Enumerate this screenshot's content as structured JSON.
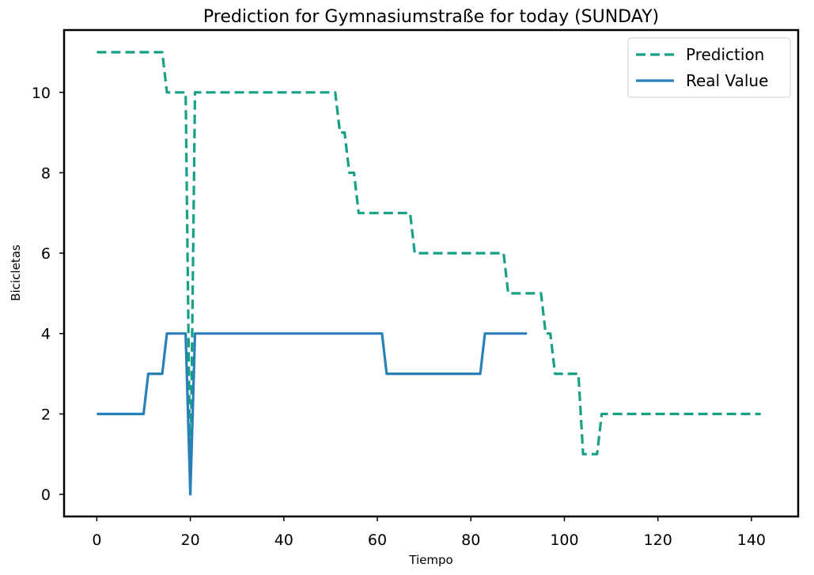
{
  "chart_data": {
    "type": "line",
    "title": "Prediction for Gymnasiumstraße for today (SUNDAY)",
    "xlabel": "Tiempo",
    "ylabel": "Bicicletas",
    "xlim": [
      -7,
      150
    ],
    "ylim": [
      -0.55,
      11.55
    ],
    "xticks": [
      "0",
      "20",
      "40",
      "60",
      "80",
      "100",
      "120",
      "140"
    ],
    "yticks": [
      "0",
      "2",
      "4",
      "6",
      "8",
      "10"
    ],
    "grid": false,
    "legend_position": "top-right",
    "series": [
      {
        "name": "Prediction",
        "style": "dashed",
        "color": "#16a085",
        "points": [
          [
            0,
            11
          ],
          [
            14,
            11
          ],
          [
            15,
            10
          ],
          [
            19,
            10
          ],
          [
            20,
            0
          ],
          [
            21,
            10
          ],
          [
            51,
            10
          ],
          [
            52,
            9
          ],
          [
            53,
            9
          ],
          [
            54,
            8
          ],
          [
            55,
            8
          ],
          [
            56,
            7
          ],
          [
            67,
            7
          ],
          [
            68,
            6
          ],
          [
            87,
            6
          ],
          [
            88,
            5
          ],
          [
            95,
            5
          ],
          [
            96,
            4
          ],
          [
            97,
            4
          ],
          [
            98,
            3
          ],
          [
            103,
            3
          ],
          [
            104,
            1
          ],
          [
            107,
            1
          ],
          [
            108,
            2
          ],
          [
            142,
            2
          ]
        ]
      },
      {
        "name": "Real Value",
        "style": "solid",
        "color": "#2980b9",
        "points": [
          [
            0,
            2
          ],
          [
            10,
            2
          ],
          [
            11,
            3
          ],
          [
            14,
            3
          ],
          [
            15,
            4
          ],
          [
            19,
            4
          ],
          [
            20,
            0
          ],
          [
            21,
            4
          ],
          [
            61,
            4
          ],
          [
            62,
            3
          ],
          [
            82,
            3
          ],
          [
            83,
            4
          ],
          [
            92,
            4
          ]
        ]
      }
    ]
  }
}
